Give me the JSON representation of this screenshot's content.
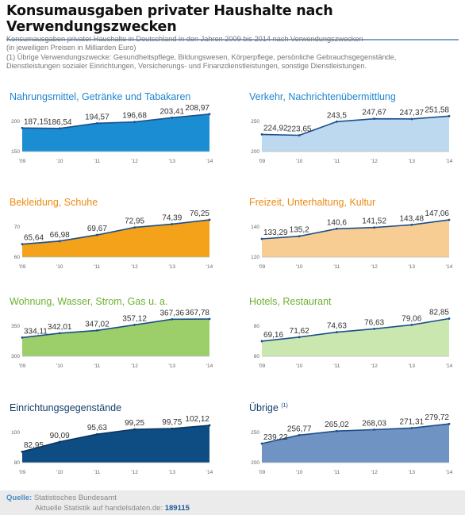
{
  "header": {
    "title": "Konsumausgaben privater Haushalte nach Verwendungszwecken",
    "subtitle_lines": [
      "Konsumausgaben privater Haushalte in Deutschland in den Jahren 2009 bis 2014 nach Verwendungszwecken",
      "(in jeweiligen Preisen in Milliarden Euro)",
      "(1) Übrige Verwendungszwecke: Gesundheitspflege, Bildungswesen, Körperpflege, persönliche Gebrauchsgegenstände,",
      "Dienstleistungen sozialer Einrichtungen, Versicherungs- und Finanzdienstleistungen, sonstige Dienstleistungen."
    ]
  },
  "footer": {
    "source_label": "Quelle:",
    "source": "Statistisches Bundesamt",
    "stat_text": "Aktuelle Statistik auf handelsdaten.de:",
    "stat_id": "189115"
  },
  "chart_data": [
    {
      "type": "area",
      "title": "Nahrungsmittel, Getränke und Tabakaren",
      "title_sup": "",
      "x": [
        "'09",
        "'10",
        "'11",
        "'12",
        "'13",
        "'14"
      ],
      "values": [
        187.15,
        186.54,
        194.57,
        196.68,
        203.41,
        208.97
      ],
      "value_labels": [
        "187,15",
        "186,54",
        "194,57",
        "196,68",
        "203,41",
        "208,97"
      ],
      "y_ticks": [
        "200",
        "150"
      ],
      "ylim": [
        150,
        215
      ],
      "fill": "#1b8ed3",
      "line": "#1d4f8a",
      "title_color": "#1f86cf"
    },
    {
      "type": "area",
      "title": "Verkehr, Nachrichtenübermittlung",
      "title_sup": "",
      "x": [
        "'09",
        "'10",
        "'11",
        "'12",
        "'13",
        "'14"
      ],
      "values": [
        224.92,
        223.65,
        243.5,
        247.67,
        247.37,
        251.58
      ],
      "value_labels": [
        "224,92",
        "223,65",
        "243,5",
        "247,67",
        "247,37",
        "251,58"
      ],
      "y_ticks": [
        "250",
        "200"
      ],
      "ylim": [
        200,
        260
      ],
      "fill": "#bcd9f0",
      "line": "#1d4f8a",
      "title_color": "#1f86cf"
    },
    {
      "type": "area",
      "title": "Bekleidung, Schuhe",
      "title_sup": "",
      "x": [
        "'09",
        "'10",
        "'11",
        "'12",
        "'13",
        "'14"
      ],
      "values": [
        65.64,
        66.98,
        69.67,
        72.95,
        74.39,
        76.25
      ],
      "value_labels": [
        "65,64",
        "66,98",
        "69,67",
        "72,95",
        "74,39",
        "76,25"
      ],
      "y_ticks": [
        "70",
        "60"
      ],
      "ylim": [
        60,
        78
      ],
      "fill": "#f4a21a",
      "line": "#1d4f8a",
      "title_color": "#ef8a12"
    },
    {
      "type": "area",
      "title": "Freizeit, Unterhaltung, Kultur",
      "title_sup": "",
      "x": [
        "'09",
        "'10",
        "'11",
        "'12",
        "'13",
        "'14"
      ],
      "values": [
        133.29,
        135.2,
        140.6,
        141.52,
        143.48,
        147.06
      ],
      "value_labels": [
        "133,29",
        "135,2",
        "140,6",
        "141,52",
        "143,48",
        "147,06"
      ],
      "y_ticks": [
        "140",
        "120"
      ],
      "ylim": [
        120,
        150
      ],
      "fill": "#f8cd94",
      "line": "#1d4f8a",
      "title_color": "#ef8a12"
    },
    {
      "type": "area",
      "title": "Wohnung, Wasser, Strom, Gas u. a.",
      "title_sup": "",
      "x": [
        "'09",
        "'10",
        "'11",
        "'12",
        "'13",
        "'14"
      ],
      "values": [
        334.11,
        342.01,
        347.02,
        357.12,
        367.36,
        367.78
      ],
      "value_labels": [
        "334,11",
        "342,01",
        "347,02",
        "357,12",
        "367,36",
        "367,78"
      ],
      "y_ticks": [
        "350",
        "300"
      ],
      "ylim": [
        300,
        375
      ],
      "fill": "#9ccf6a",
      "line": "#1d4f8a",
      "title_color": "#6cb230"
    },
    {
      "type": "area",
      "title": "Hotels, Restaurant",
      "title_sup": "",
      "x": [
        "'09",
        "'10",
        "'11",
        "'12",
        "'13",
        "'14"
      ],
      "values": [
        69.16,
        71.62,
        74.63,
        76.63,
        79.06,
        82.85
      ],
      "value_labels": [
        "69,16",
        "71,62",
        "74,63",
        "76,63",
        "79,06",
        "82,85"
      ],
      "y_ticks": [
        "80",
        "60"
      ],
      "ylim": [
        60,
        85
      ],
      "fill": "#cbe7b0",
      "line": "#1d4f8a",
      "title_color": "#6cb230"
    },
    {
      "type": "area",
      "title": "Einrichtungsgegenstände",
      "title_sup": "",
      "x": [
        "'09",
        "'10",
        "'11",
        "'12",
        "'13",
        "'14"
      ],
      "values": [
        82.95,
        90.09,
        95.63,
        99.25,
        99.75,
        102.12
      ],
      "value_labels": [
        "82,95",
        "90,09",
        "95,63",
        "99,25",
        "99,75",
        "102,12"
      ],
      "y_ticks": [
        "100",
        "80"
      ],
      "ylim": [
        75,
        105
      ],
      "fill": "#0d4d84",
      "line": "#0a3660",
      "title_color": "#123e6e"
    },
    {
      "type": "area",
      "title": "Übrige",
      "title_sup": "(1)",
      "x": [
        "'09",
        "'10",
        "'11",
        "'12",
        "'13",
        "'14"
      ],
      "values": [
        239.22,
        256.77,
        265.02,
        268.03,
        271.31,
        279.72
      ],
      "value_labels": [
        "239,22",
        "256,77",
        "265,02",
        "268,03",
        "271,31",
        "279,72"
      ],
      "y_ticks": [
        "250",
        "200"
      ],
      "ylim": [
        200,
        285
      ],
      "fill": "#6f93c3",
      "line": "#1d4f8a",
      "title_color": "#123e6e"
    }
  ]
}
